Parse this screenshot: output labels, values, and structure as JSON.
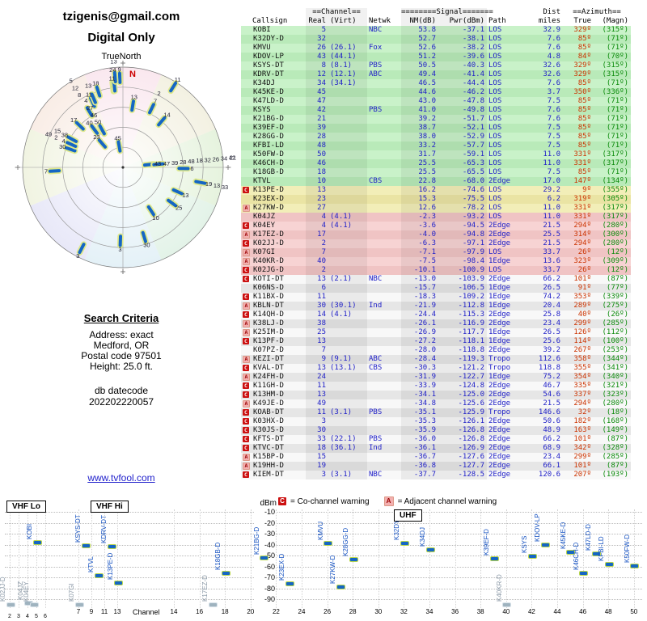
{
  "profile": {
    "email": "tzigenis@gmail.com",
    "mode": "Digital Only"
  },
  "radar": {
    "title": "TrueNorth",
    "north_label": "N",
    "sector_colors": [
      "#f8dce6",
      "#edead2",
      "#d9eccc",
      "#d4ecdc",
      "#d6e9f2",
      "#dcdcf4",
      "#e9eed2",
      "#f6e3d8"
    ]
  },
  "search": {
    "title": "Search Criteria",
    "lines": [
      "Address: exact",
      "Medford, OR",
      "Postal code 97501",
      "Height: 25.0 ft."
    ],
    "db_label": "db datecode",
    "db_value": "202202220057",
    "link": "www.tvfool.com"
  },
  "legend": {
    "co_badge": "C",
    "co_text": "= Co-channel warning",
    "adj_badge": "A",
    "adj_text": "= Adjacent channel warning"
  },
  "table": {
    "h1": {
      "channel": "==Channel==",
      "signal": "========Signal=======",
      "dist": "Dist",
      "azimuth": "==Azimuth=="
    },
    "h2": {
      "callsign": "Callsign",
      "real": "Real",
      "virt": "(Virt)",
      "netwk": "Netwk",
      "nm": "NM(dB)",
      "pwr": "Pwr(dBm)",
      "path": "Path",
      "miles": "miles",
      "tru": "True",
      "magn": "(Magn)"
    }
  },
  "spectrum": {
    "ylabel": "dBm",
    "yticks": [
      -10,
      -20,
      -30,
      -40,
      -50,
      -60,
      -70,
      -80,
      -90
    ],
    "xlabel": "Channel",
    "bands": [
      "VHF Lo",
      "VHF Hi",
      "UHF"
    ],
    "vhf_lo_ticks": [
      2,
      3,
      4,
      5,
      6
    ],
    "vhf_hi_ticks": [
      7,
      9,
      11,
      13
    ],
    "uhf_ticks": [
      14,
      16,
      18,
      20,
      22,
      24,
      26,
      28,
      30,
      32,
      34,
      36,
      38,
      40,
      42,
      44,
      46,
      48,
      50
    ]
  },
  "chart_data": {
    "type": "table",
    "columns": [
      "Callsign",
      "Channel Real",
      "Channel (Virt)",
      "Netwk",
      "NM(dB)",
      "Pwr(dBm)",
      "Path",
      "Dist miles",
      "Azimuth True deg",
      "Azimuth (Magn) deg",
      "warning"
    ],
    "rows": [
      [
        "KOBI",
        5,
        "",
        "NBC",
        53.8,
        -37.1,
        "LOS",
        32.9,
        329,
        315,
        ""
      ],
      [
        "K32DY-D",
        32,
        "",
        "",
        52.7,
        -38.1,
        "LOS",
        7.6,
        85,
        71,
        ""
      ],
      [
        "KMVU",
        26,
        "26.1",
        "Fox",
        52.6,
        -38.2,
        "LOS",
        7.6,
        85,
        71,
        ""
      ],
      [
        "KDOV-LP",
        43,
        "44.1",
        "",
        51.2,
        -39.6,
        "LOS",
        4.8,
        84,
        70,
        ""
      ],
      [
        "KSYS-DT",
        8,
        "8.1",
        "PBS",
        50.5,
        -40.3,
        "LOS",
        32.6,
        329,
        315,
        ""
      ],
      [
        "KDRV-DT",
        12,
        "12.1",
        "ABC",
        49.4,
        -41.4,
        "LOS",
        32.6,
        329,
        315,
        ""
      ],
      [
        "K34DJ",
        34,
        "34.1",
        "",
        46.5,
        -44.4,
        "LOS",
        7.6,
        85,
        71,
        ""
      ],
      [
        "K45KE-D",
        45,
        "",
        "",
        44.6,
        -46.2,
        "LOS",
        3.7,
        350,
        336,
        ""
      ],
      [
        "K47LD-D",
        47,
        "",
        "",
        43.0,
        -47.8,
        "LOS",
        7.5,
        85,
        71,
        ""
      ],
      [
        "KSYS",
        42,
        "",
        "PBS",
        41.0,
        -49.8,
        "LOS",
        7.6,
        85,
        71,
        ""
      ],
      [
        "K21BG-D",
        21,
        "",
        "",
        39.2,
        -51.7,
        "LOS",
        7.6,
        85,
        71,
        ""
      ],
      [
        "K39EF-D",
        39,
        "",
        "",
        38.7,
        -52.1,
        "LOS",
        7.5,
        85,
        71,
        ""
      ],
      [
        "K28GG-D",
        28,
        "",
        "",
        38.0,
        -52.9,
        "LOS",
        7.5,
        85,
        71,
        ""
      ],
      [
        "KFBI-LD",
        48,
        "",
        "",
        33.2,
        -57.7,
        "LOS",
        7.5,
        85,
        71,
        ""
      ],
      [
        "K50FW-D",
        50,
        "",
        "",
        31.7,
        -59.1,
        "LOS",
        11.0,
        331,
        317,
        ""
      ],
      [
        "K46CH-D",
        46,
        "",
        "",
        25.5,
        -65.3,
        "LOS",
        11.0,
        331,
        317,
        ""
      ],
      [
        "K18GB-D",
        18,
        "",
        "",
        25.5,
        -65.5,
        "LOS",
        7.5,
        85,
        71,
        ""
      ],
      [
        "KTVL",
        10,
        "",
        "CBS",
        22.8,
        -68.0,
        "2Edge",
        17.0,
        147,
        134,
        ""
      ],
      [
        "K13PE-D",
        13,
        "",
        "",
        16.2,
        -74.6,
        "LOS",
        29.2,
        9,
        355,
        "C"
      ],
      [
        "K23EX-D",
        23,
        "",
        "",
        15.3,
        -75.5,
        "LOS",
        6.2,
        319,
        305,
        ""
      ],
      [
        "K27KW-D",
        27,
        "",
        "",
        12.6,
        -78.2,
        "LOS",
        11.0,
        331,
        317,
        "A"
      ],
      [
        "K04JZ",
        4,
        "4.1",
        "",
        -2.3,
        -93.2,
        "LOS",
        11.0,
        331,
        317,
        ""
      ],
      [
        "K04EY",
        4,
        "4.1",
        "",
        -3.6,
        -94.5,
        "2Edge",
        21.5,
        294,
        280,
        "C"
      ],
      [
        "K17EZ-D",
        17,
        "",
        "",
        -4.0,
        -94.8,
        "2Edge",
        25.5,
        314,
        300,
        "A"
      ],
      [
        "K02JJ-D",
        2,
        "",
        "",
        -6.3,
        -97.1,
        "2Edge",
        21.5,
        294,
        280,
        "C"
      ],
      [
        "K07GI",
        7,
        "",
        "",
        -7.1,
        -97.9,
        "LOS",
        33.7,
        26,
        12,
        "A"
      ],
      [
        "K40KR-D",
        40,
        "",
        "",
        -7.5,
        -98.4,
        "1Edge",
        13.6,
        323,
        309,
        "A"
      ],
      [
        "K02JG-D",
        2,
        "",
        "",
        -10.1,
        -100.9,
        "LOS",
        33.7,
        26,
        12,
        "C"
      ],
      [
        "KOTI-DT",
        13,
        "2.1",
        "NBC",
        -13.0,
        -103.9,
        "2Edge",
        66.2,
        101,
        87,
        "C"
      ],
      [
        "K06NS-D",
        6,
        "",
        "",
        -15.7,
        -106.5,
        "1Edge",
        26.5,
        91,
        77,
        ""
      ],
      [
        "K11BX-D",
        11,
        "",
        "",
        -18.3,
        -109.2,
        "1Edge",
        74.2,
        353,
        339,
        "C"
      ],
      [
        "KBLN-DT",
        30,
        "30.1",
        "Ind",
        -21.9,
        -112.8,
        "1Edge",
        20.4,
        289,
        275,
        "A"
      ],
      [
        "K14QH-D",
        14,
        "4.1",
        "",
        -24.4,
        -115.3,
        "2Edge",
        25.8,
        40,
        26,
        "C"
      ],
      [
        "K38LJ-D",
        38,
        "",
        "",
        -26.1,
        -116.9,
        "2Edge",
        23.4,
        299,
        285,
        "A"
      ],
      [
        "K25IM-D",
        25,
        "",
        "",
        -26.9,
        -117.7,
        "1Edge",
        26.5,
        126,
        112,
        "A"
      ],
      [
        "K13PF-D",
        13,
        "",
        "",
        -27.2,
        -118.1,
        "1Edge",
        25.6,
        114,
        100,
        "C"
      ],
      [
        "K07PZ-D",
        7,
        "",
        "",
        -28.0,
        -118.8,
        "2Edge",
        39.2,
        267,
        253,
        ""
      ],
      [
        "KEZI-DT",
        9,
        "9.1",
        "ABC",
        -28.4,
        -119.3,
        "Tropo",
        112.6,
        358,
        344,
        "A"
      ],
      [
        "KVAL-DT",
        13,
        "13.1",
        "CBS",
        -30.3,
        -121.2,
        "Tropo",
        118.8,
        355,
        341,
        "C"
      ],
      [
        "K24FH-D",
        24,
        "",
        "",
        -31.9,
        -122.7,
        "1Edge",
        75.2,
        354,
        340,
        "A"
      ],
      [
        "K11GH-D",
        11,
        "",
        "",
        -33.9,
        -124.8,
        "2Edge",
        46.7,
        335,
        321,
        "C"
      ],
      [
        "K13HM-D",
        13,
        "",
        "",
        -34.1,
        -125.0,
        "2Edge",
        54.6,
        337,
        323,
        "C"
      ],
      [
        "K49JE-D",
        49,
        "",
        "",
        -34.8,
        -125.6,
        "2Edge",
        21.5,
        294,
        280,
        "A"
      ],
      [
        "KOAB-DT",
        11,
        "3.1",
        "PBS",
        -35.1,
        -125.9,
        "Tropo",
        146.6,
        32,
        18,
        "C"
      ],
      [
        "K03HX-D",
        3,
        "",
        "",
        -35.3,
        -126.1,
        "2Edge",
        50.6,
        182,
        168,
        "C"
      ],
      [
        "K30JS-D",
        30,
        "",
        "",
        -35.9,
        -126.8,
        "2Edge",
        48.9,
        163,
        149,
        "C"
      ],
      [
        "KFTS-DT",
        33,
        "22.1",
        "PBS",
        -36.0,
        -126.8,
        "2Edge",
        66.2,
        101,
        87,
        "C"
      ],
      [
        "KTVC-DT",
        18,
        "36.1",
        "Ind",
        -36.1,
        -126.9,
        "2Edge",
        68.9,
        342,
        328,
        "C"
      ],
      [
        "K15BP-D",
        15,
        "",
        "",
        -36.7,
        -127.6,
        "2Edge",
        23.4,
        299,
        285,
        "A"
      ],
      [
        "K19HH-D",
        19,
        "",
        "",
        -36.8,
        -127.7,
        "2Edge",
        66.1,
        101,
        87,
        "A"
      ],
      [
        "KIEM-DT",
        3,
        "3.1",
        "NBC",
        -37.7,
        -128.5,
        "2Edge",
        120.6,
        207,
        193,
        "C"
      ]
    ],
    "linked_charts": [
      {
        "type": "scatter",
        "polar": true,
        "name": "azimuth-distance-radar",
        "angle_field": "Azimuth True deg (0=N, clockwise)",
        "radius_field": "Dist miles",
        "point_label_field": "Channel Real"
      },
      {
        "type": "scatter",
        "name": "signal-level-vs-channel",
        "x_field": "Channel Real",
        "y_field": "Pwr(dBm)",
        "ylim": [
          -95,
          -5
        ],
        "xbands": [
          "VHF Lo 2-6",
          "VHF Hi 7-13",
          "UHF 14-50"
        ],
        "grid": true,
        "legend_position": "top"
      }
    ]
  }
}
